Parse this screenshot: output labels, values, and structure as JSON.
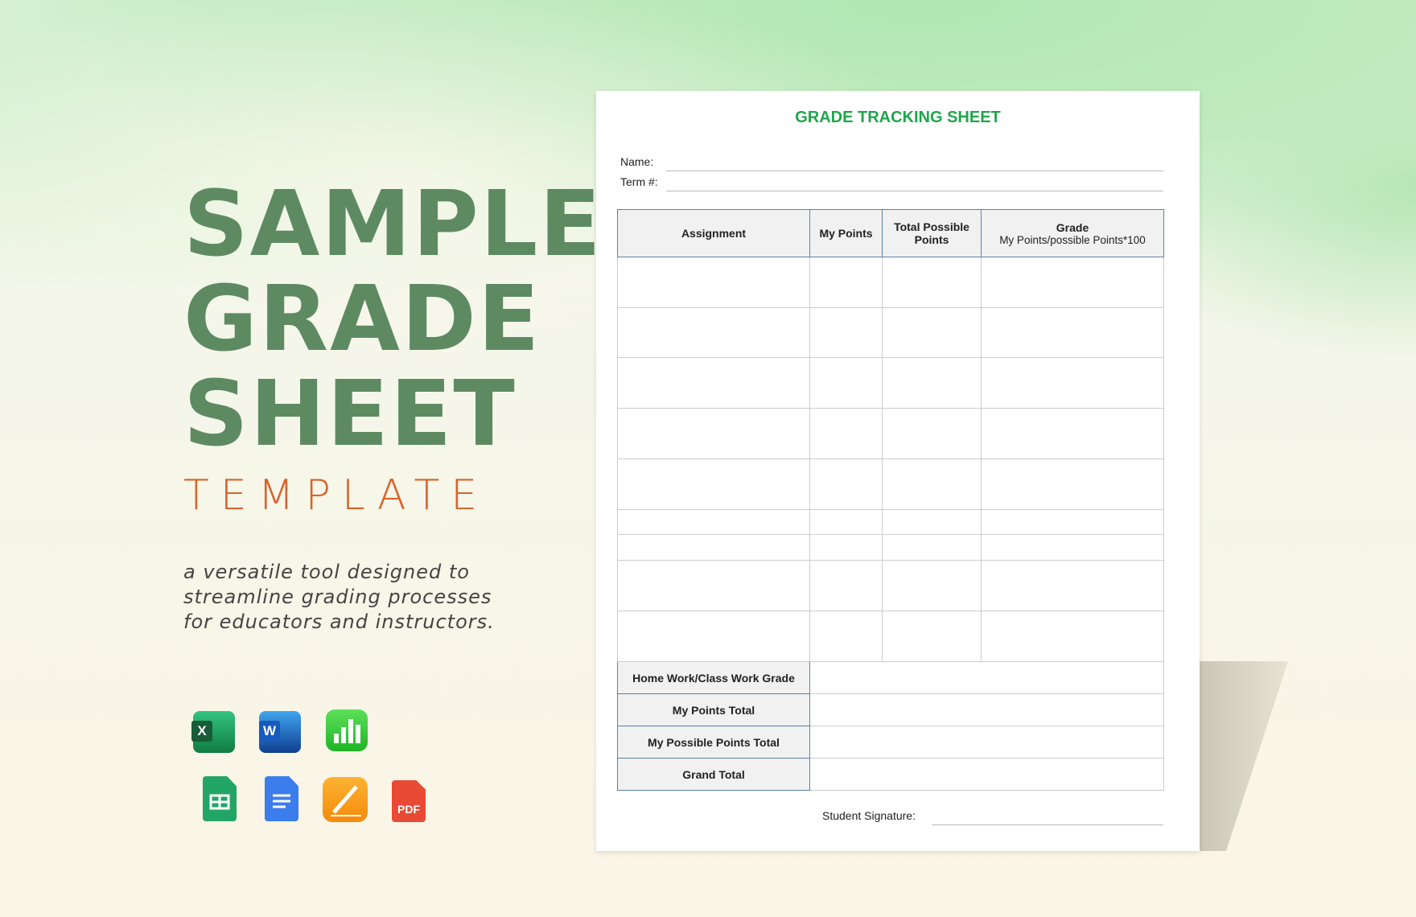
{
  "hero": {
    "line1": "SAMPLE",
    "line2": "GRADE",
    "line3": "SHEET",
    "subtitle": "TEMPLATE",
    "description": "a versatile tool designed to streamline grading processes for educators and instructors."
  },
  "colors": {
    "hero_green": "#5e8a62",
    "accent_orange": "#d9622b",
    "sheet_title_green": "#1fa64b",
    "header_border": "#5b7fb0"
  },
  "formats": [
    "excel-icon",
    "word-icon",
    "numbers-icon",
    "google-sheets-icon",
    "google-docs-icon",
    "pages-icon",
    "pdf-icon"
  ],
  "pdf_label": "PDF",
  "excel_label": "X",
  "word_label": "W",
  "sheet": {
    "title": "GRADE TRACKING SHEET",
    "name_label": "Name:",
    "term_label": "Term #:",
    "columns": [
      "Assignment",
      "My Points",
      "Total Possible Points",
      "Grade"
    ],
    "grade_subheader": "My Points/possible Points*100",
    "summary": [
      "Home Work/Class Work Grade",
      "My Points Total",
      "My Possible Points Total",
      "Grand Total"
    ],
    "signature_label": "Student Signature:"
  }
}
